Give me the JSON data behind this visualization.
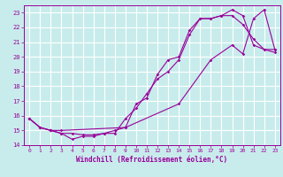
{
  "title": "",
  "xlabel": "Windchill (Refroidissement éolien,°C)",
  "bg_color": "#c8ecec",
  "line_color": "#990099",
  "grid_color": "#ffffff",
  "xlim": [
    -0.5,
    23.5
  ],
  "ylim": [
    14,
    23.5
  ],
  "xticks": [
    0,
    1,
    2,
    3,
    4,
    5,
    6,
    7,
    8,
    9,
    10,
    11,
    12,
    13,
    14,
    15,
    16,
    17,
    18,
    19,
    20,
    21,
    22,
    23
  ],
  "yticks": [
    14,
    15,
    16,
    17,
    18,
    19,
    20,
    21,
    22,
    23
  ],
  "curve1_x": [
    0,
    1,
    2,
    3,
    4,
    5,
    6,
    7,
    8,
    9,
    10,
    11,
    12,
    13,
    14,
    15,
    16,
    17,
    18,
    19,
    20,
    21,
    22,
    23
  ],
  "curve1_y": [
    15.8,
    15.2,
    15.0,
    14.8,
    14.8,
    14.7,
    14.7,
    14.8,
    14.8,
    15.8,
    16.5,
    17.5,
    18.5,
    19.0,
    19.8,
    21.5,
    22.6,
    22.6,
    22.8,
    23.2,
    22.8,
    20.8,
    20.5,
    20.5
  ],
  "curve2_x": [
    0,
    1,
    2,
    3,
    4,
    5,
    6,
    7,
    8,
    9,
    10,
    11,
    12,
    13,
    14,
    15,
    16,
    17,
    18,
    19,
    20,
    21,
    22,
    23
  ],
  "curve2_y": [
    15.8,
    15.2,
    15.0,
    14.8,
    14.4,
    14.6,
    14.6,
    14.8,
    15.0,
    15.2,
    16.8,
    17.2,
    18.8,
    19.8,
    20.0,
    21.8,
    22.6,
    22.6,
    22.8,
    22.8,
    22.2,
    21.2,
    20.5,
    20.3
  ],
  "curve3_x": [
    0,
    1,
    2,
    3,
    9,
    14,
    17,
    19,
    20,
    21,
    22,
    23
  ],
  "curve3_y": [
    15.8,
    15.2,
    15.0,
    15.0,
    15.2,
    16.8,
    19.8,
    20.8,
    20.2,
    22.6,
    23.2,
    20.5
  ]
}
